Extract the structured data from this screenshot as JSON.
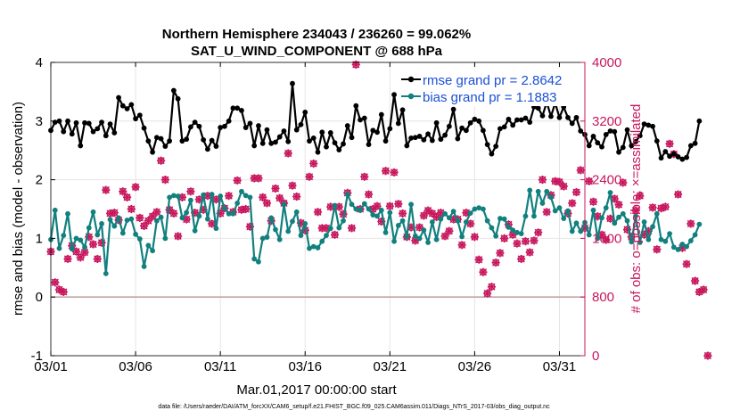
{
  "chart_data": {
    "type": "line",
    "title_line1": "Northern Hemisphere 234043 / 236260 = 99.062%",
    "title_line2": "SAT_U_WIND_COMPONENT @ 688 hPa",
    "xlabel": "Mar.01,2017 00:00:00 start",
    "ylabel_left": "rmse and bias (model - observation)",
    "ylabel_right": "# of obs: o=possible; ×=assimilated",
    "footnote": "data file: /Users/raeder/DAI/ATM_forcXX/CAM6_setup/f.e21.FHIST_BGC.f09_025.CAM6assim.011/Diags_NTrS_2017-03/obs_diag_output.nc",
    "xlim": [
      0,
      31.5
    ],
    "ylim_left": [
      -1,
      4
    ],
    "ylim_right": [
      0,
      4000
    ],
    "x_ticks": [
      0,
      5,
      10,
      15,
      20,
      25,
      30
    ],
    "x_tick_labels": [
      "03/01",
      "03/06",
      "03/11",
      "03/16",
      "03/21",
      "03/26",
      "03/31"
    ],
    "y_ticks_left": [
      "-1",
      "0",
      "1",
      "2",
      "3",
      "4"
    ],
    "y_ticks_right": [
      "0",
      "800",
      "1600",
      "2400",
      "3200",
      "4000"
    ],
    "legend": [
      {
        "label": "rmse grand pr = 2.8642",
        "color": "#000000"
      },
      {
        "label": "bias grand pr = 1.1883",
        "color": "#11807e"
      }
    ],
    "colors": {
      "rmse": "#000000",
      "bias": "#11807e",
      "obs": "#c8175d",
      "zero_line": "#c4a3a3",
      "grid": "#e6e6e6"
    },
    "step_days": 0.25,
    "series": [
      {
        "name": "rmse",
        "values": [
          2.84,
          2.98,
          3.0,
          2.82,
          3.0,
          2.78,
          2.97,
          2.58,
          2.97,
          2.96,
          2.82,
          2.87,
          2.98,
          2.75,
          2.95,
          2.8,
          3.4,
          3.26,
          3.21,
          3.28,
          3.04,
          3.1,
          2.88,
          2.66,
          2.47,
          2.72,
          2.7,
          2.57,
          2.66,
          3.52,
          3.38,
          2.66,
          2.69,
          2.9,
          2.98,
          2.91,
          2.68,
          2.52,
          2.67,
          2.57,
          2.89,
          2.91,
          3.0,
          3.22,
          3.22,
          3.18,
          2.89,
          2.96,
          2.58,
          2.92,
          2.62,
          2.85,
          2.62,
          2.64,
          2.73,
          2.83,
          2.65,
          3.64,
          2.85,
          2.94,
          3.15,
          2.66,
          2.71,
          2.47,
          2.81,
          2.56,
          2.8,
          2.63,
          2.51,
          2.61,
          2.92,
          2.72,
          3.26,
          3.02,
          3.05,
          2.6,
          2.84,
          2.81,
          3.11,
          2.66,
          2.87,
          3.45,
          2.96,
          3.19,
          2.58,
          2.71,
          2.72,
          2.74,
          2.68,
          2.78,
          2.67,
          2.97,
          2.69,
          2.76,
          2.91,
          3.2,
          2.7,
          2.88,
          2.84,
          2.97,
          3.03,
          3.0,
          2.84,
          2.6,
          2.44,
          2.57,
          2.87,
          2.9,
          3.03,
          2.93,
          3.02,
          3.02,
          3.05,
          2.98,
          3.24,
          3.22,
          3.09,
          3.32,
          3.08,
          3.31,
          3.06,
          3.24,
          3.06,
          2.96,
          3.06,
          2.83,
          2.77,
          2.58,
          2.74,
          2.63,
          2.56,
          2.77,
          2.83,
          2.82,
          2.47,
          2.55,
          2.85,
          2.58,
          2.65,
          2.75,
          2.95,
          2.93,
          2.91,
          2.66,
          2.37,
          2.48,
          2.4,
          2.44,
          2.39,
          2.35,
          2.38,
          2.58,
          2.62,
          3.0
        ]
      },
      {
        "name": "bias",
        "values": [
          0.98,
          1.48,
          0.83,
          1.05,
          1.42,
          0.82,
          1.0,
          0.97,
          0.85,
          1.18,
          1.45,
          1.06,
          1.25,
          0.4,
          1.32,
          1.21,
          1.35,
          1.09,
          1.31,
          1.33,
          1.07,
          0.99,
          0.52,
          0.88,
          0.79,
          1.3,
          1.36,
          1.0,
          1.7,
          1.73,
          1.72,
          1.35,
          1.44,
          1.65,
          1.13,
          1.38,
          1.74,
          1.33,
          1.75,
          1.17,
          1.72,
          1.51,
          1.42,
          1.42,
          1.6,
          1.8,
          1.73,
          1.7,
          0.65,
          0.6,
          1.0,
          1.02,
          1.35,
          1.15,
          0.98,
          1.58,
          1.12,
          1.29,
          1.45,
          1.05,
          1.25,
          0.83,
          0.86,
          0.84,
          0.95,
          1.05,
          1.17,
          1.56,
          1.18,
          1.3,
          1.75,
          1.58,
          1.5,
          1.48,
          1.59,
          1.5,
          1.4,
          1.38,
          1.48,
          1.1,
          1.44,
          0.95,
          1.22,
          1.3,
          1.03,
          1.58,
          1.04,
          1.0,
          1.14,
          0.93,
          1.28,
          0.98,
          1.33,
          1.42,
          1.35,
          1.46,
          1.3,
          1.03,
          1.28,
          1.43,
          1.5,
          1.52,
          1.5,
          1.3,
          1.18,
          1.04,
          1.34,
          1.33,
          1.19,
          1.14,
          1.1,
          1.08,
          1.38,
          1.82,
          1.38,
          1.8,
          1.6,
          1.8,
          1.7,
          1.47,
          1.52,
          1.34,
          1.47,
          1.12,
          1.26,
          1.12,
          1.27,
          1.06,
          1.48,
          1.0,
          1.35,
          1.52,
          1.78,
          1.26,
          1.36,
          1.42,
          1.3,
          0.94,
          1.38,
          0.93,
          1.28,
          0.98,
          1.2,
          1.42,
          0.98,
          0.95,
          1.08,
          0.85,
          0.81,
          0.9,
          0.86,
          0.96,
          1.06,
          1.24
        ]
      },
      {
        "name": "obs_possible",
        "values": [
          1420,
          1000,
          900,
          870,
          1320,
          1500,
          1420,
          1340,
          1410,
          1620,
          1520,
          1320,
          1540,
          2260,
          1940,
          1950,
          1850,
          2240,
          2160,
          2000,
          2300,
          1880,
          1770,
          1840,
          1900,
          1960,
          2660,
          2400,
          1990,
          1940,
          1630,
          2160,
          1860,
          2240,
          1950,
          2130,
          1990,
          2180,
          1800,
          2130,
          1940,
          2010,
          2180,
          1960,
          2390,
          1990,
          2000,
          1760,
          2420,
          2420,
          2160,
          2080,
          1840,
          2280,
          2150,
          2080,
          2760,
          2320,
          2170,
          1810,
          1710,
          2440,
          2620,
          1960,
          1740,
          1740,
          2030,
          1650,
          2030,
          1930,
          2220,
          1740,
          3970,
          2000,
          2440,
          2200,
          2000,
          2040,
          1830,
          2520,
          2040,
          2500,
          2070,
          1940,
          1620,
          1750,
          1570,
          1750,
          1910,
          1980,
          1940,
          1890,
          1950,
          1630,
          1700,
          1860,
          1860,
          1510,
          1950,
          1800,
          1620,
          1310,
          1140,
          850,
          940,
          1270,
          1400,
          1600,
          1790,
          1650,
          1530,
          1320,
          1560,
          1410,
          1570,
          1680,
          2400,
          1960,
          2190,
          2380,
          2370,
          2310,
          1940,
          2080,
          2230,
          2530,
          1740,
          2380,
          2100,
          1900,
          1650,
          1580,
          1870,
          2140,
          2060,
          2360,
          1720,
          1620,
          1980,
          2180,
          1650,
          1700,
          2020,
          1450,
          2010,
          2030,
          2890,
          2750,
          2200,
          1470,
          1250,
          1800,
          1020,
          870,
          900,
          0
        ]
      },
      {
        "name": "obs_assimilated",
        "values": [
          1420,
          1000,
          900,
          870,
          1320,
          1500,
          1420,
          1340,
          1410,
          1620,
          1520,
          1320,
          1540,
          2260,
          1940,
          1950,
          1850,
          2240,
          2160,
          2000,
          2300,
          1880,
          1770,
          1840,
          1900,
          1960,
          2660,
          2400,
          1990,
          1940,
          1630,
          2160,
          1860,
          2240,
          1950,
          2130,
          1990,
          2180,
          1800,
          2130,
          1940,
          2010,
          2180,
          1960,
          2390,
          1990,
          2000,
          1760,
          2420,
          2420,
          2160,
          2080,
          1840,
          2280,
          2150,
          2080,
          2760,
          2320,
          2170,
          1810,
          1710,
          2440,
          2620,
          1960,
          1740,
          1740,
          2030,
          1650,
          2030,
          1930,
          2220,
          1740,
          3970,
          2000,
          2440,
          2200,
          2000,
          2040,
          1830,
          2520,
          2040,
          2500,
          2070,
          1940,
          1620,
          1750,
          1570,
          1750,
          1910,
          1980,
          1940,
          1890,
          1950,
          1630,
          1700,
          1860,
          1860,
          1510,
          1950,
          1800,
          1620,
          1310,
          1140,
          850,
          940,
          1270,
          1400,
          1600,
          1790,
          1650,
          1530,
          1320,
          1560,
          1410,
          1570,
          1680,
          2400,
          1960,
          2190,
          2380,
          2370,
          2310,
          1940,
          2080,
          2230,
          2530,
          1740,
          2380,
          2100,
          1900,
          1650,
          1580,
          1870,
          2140,
          2060,
          2360,
          1720,
          1620,
          1980,
          2180,
          1650,
          1700,
          2020,
          1450,
          2010,
          2030,
          2890,
          2750,
          2200,
          1470,
          1250,
          1800,
          1020,
          870,
          900,
          0
        ]
      }
    ]
  }
}
